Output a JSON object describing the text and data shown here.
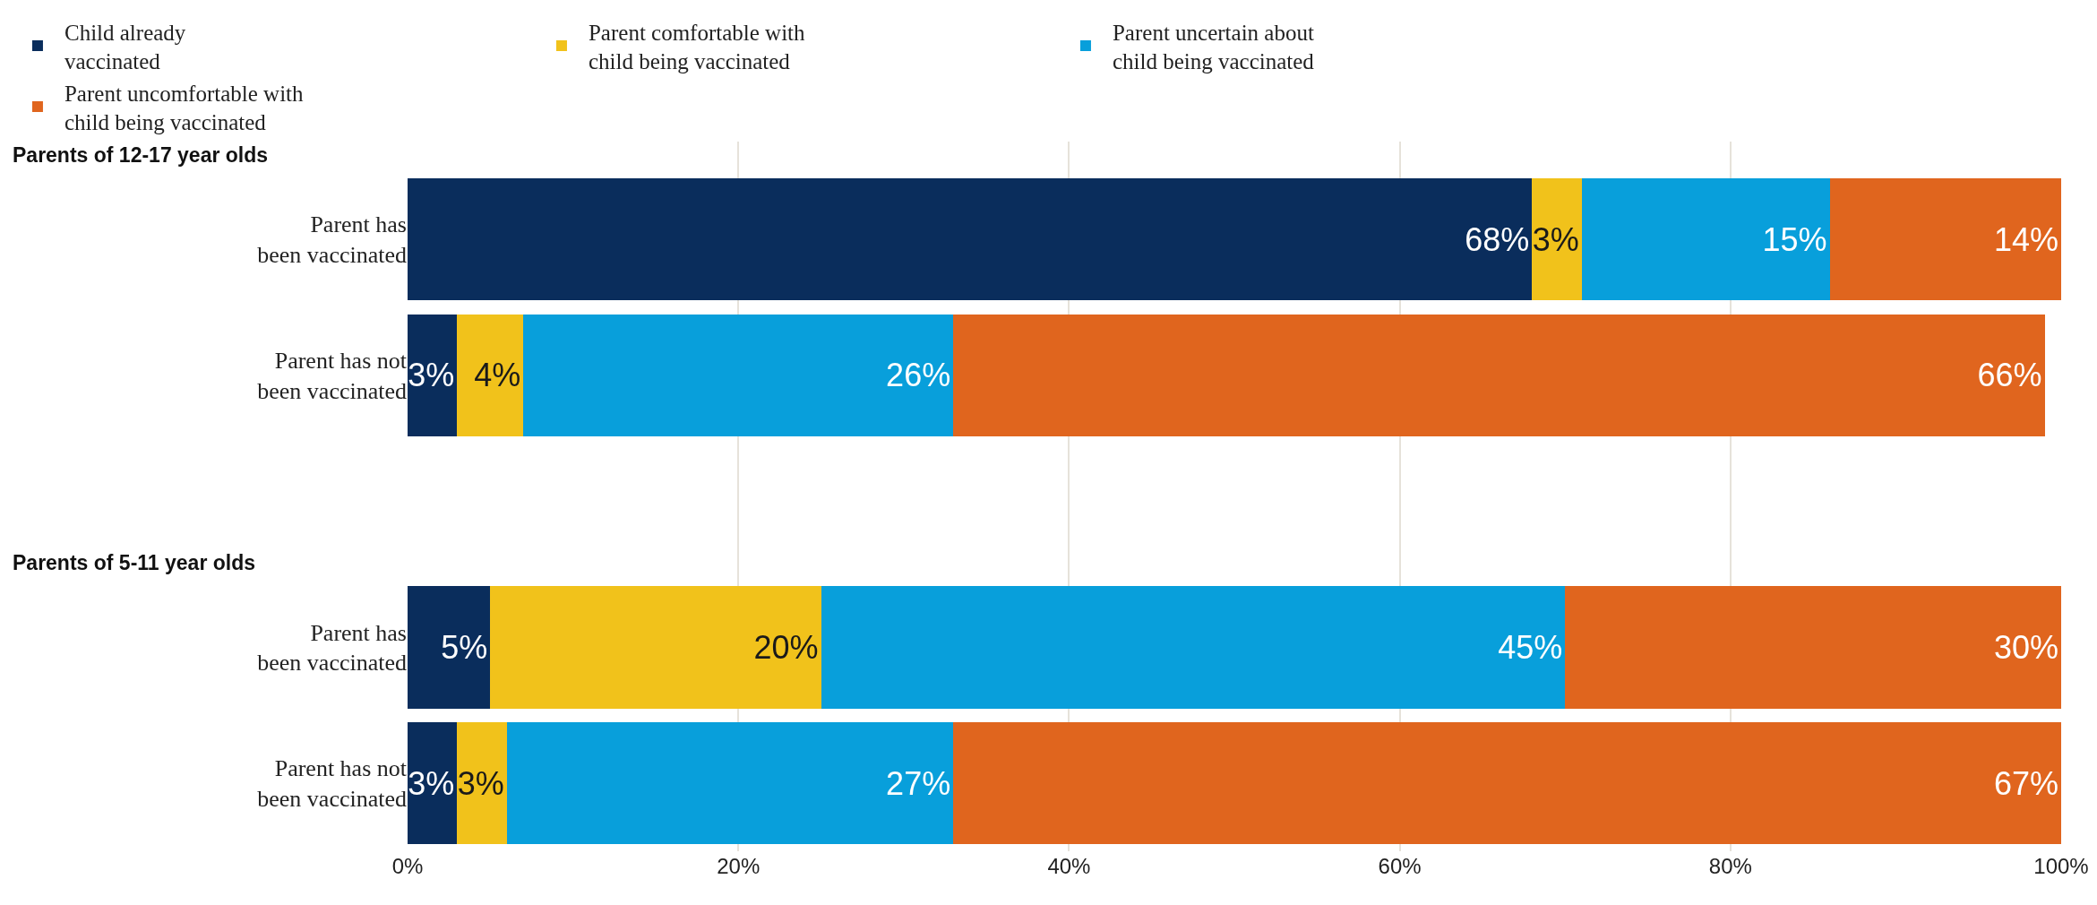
{
  "chart_data": {
    "type": "bar",
    "orientation": "horizontal",
    "stacked": true,
    "categories": [
      "Parent has been vaccinated",
      "Parent has not been vaccinated",
      null,
      "Parent has been vaccinated",
      "Parent has not been vaccinated"
    ],
    "series": [
      {
        "name": "Child already vaccinated",
        "color": "#0a2d5c",
        "values": [
          68,
          3,
          null,
          5,
          3
        ],
        "value_labels": [
          "68%",
          "3%",
          null,
          "5%",
          "3%"
        ]
      },
      {
        "name": "Parent comfortable with child being vaccinated",
        "color": "#f1c21b",
        "values": [
          3,
          4,
          null,
          20,
          3
        ],
        "value_labels": [
          "3%",
          "4%",
          null,
          "20%",
          "3%"
        ]
      },
      {
        "name": "Parent uncertain about child being vaccinated",
        "color": "#089fdb",
        "values": [
          15,
          26,
          null,
          45,
          27
        ],
        "value_labels": [
          "15%",
          "26%",
          null,
          "45%",
          "27%"
        ]
      },
      {
        "name": "Parent uncomfortable with child being vaccinated",
        "color": "#e0651e",
        "values": [
          14,
          66,
          null,
          30,
          67
        ],
        "value_labels": [
          "14%",
          "66%",
          null,
          "30%",
          "67%"
        ]
      }
    ],
    "annotations": [
      "Parents of 12-17 year olds",
      "Parents of 5-11 year olds"
    ],
    "xlim": [
      0,
      100
    ],
    "xticks": [
      {
        "value": 0,
        "label": "0%"
      },
      {
        "value": 20,
        "label": "20%"
      },
      {
        "value": 40,
        "label": "40%"
      },
      {
        "value": 60,
        "label": "60%"
      },
      {
        "value": 80,
        "label": "80%"
      },
      {
        "value": 100,
        "label": "100%"
      }
    ],
    "grid": "x",
    "legend": "top"
  }
}
